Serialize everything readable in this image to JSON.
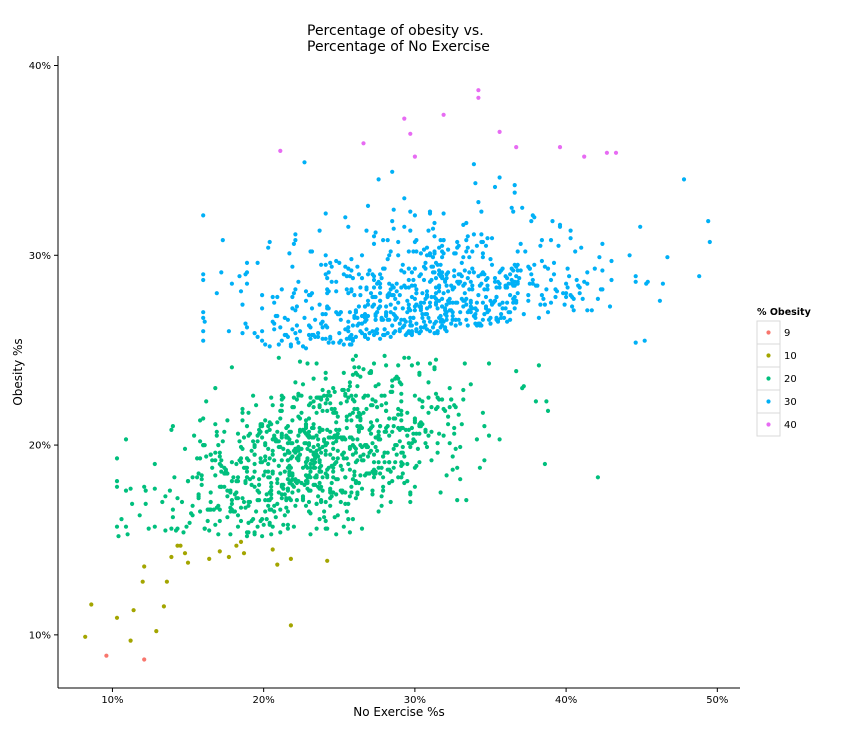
{
  "chart_data": {
    "type": "scatter",
    "title_lines": [
      "Percentage of obesity vs.",
      "Percentage of No Exercise"
    ],
    "xlabel": "No Exercise %s",
    "ylabel": "Obesity %s",
    "xlim": [
      0.064,
      0.515
    ],
    "ylim": [
      0.072,
      0.405
    ],
    "x_ticks": [
      {
        "value": 0.1,
        "label": "10%"
      },
      {
        "value": 0.2,
        "label": "20%"
      },
      {
        "value": 0.3,
        "label": "30%"
      },
      {
        "value": 0.4,
        "label": "40%"
      },
      {
        "value": 0.5,
        "label": "50%"
      }
    ],
    "y_ticks": [
      {
        "value": 0.1,
        "label": "10%"
      },
      {
        "value": 0.2,
        "label": "20%"
      },
      {
        "value": 0.3,
        "label": "30%"
      },
      {
        "value": 0.4,
        "label": "40%"
      }
    ],
    "grid": false,
    "legend": {
      "title": "% Obesity",
      "placement": "right",
      "entries": [
        {
          "label": "9",
          "color": "#F8766D"
        },
        {
          "label": "10",
          "color": "#A3A500"
        },
        {
          "label": "20",
          "color": "#00BF7D"
        },
        {
          "label": "30",
          "color": "#00B0F6"
        },
        {
          "label": "40",
          "color": "#E76BF3"
        }
      ]
    },
    "series": [
      {
        "name": "9",
        "color": "#F8766D",
        "points": [
          [
            0.096,
            0.089
          ],
          [
            0.121,
            0.087
          ]
        ]
      },
      {
        "name": "10",
        "color": "#A3A500",
        "points": [
          [
            0.082,
            0.099
          ],
          [
            0.086,
            0.116
          ],
          [
            0.103,
            0.109
          ],
          [
            0.112,
            0.097
          ],
          [
            0.114,
            0.113
          ],
          [
            0.12,
            0.128
          ],
          [
            0.121,
            0.136
          ],
          [
            0.129,
            0.102
          ],
          [
            0.134,
            0.115
          ],
          [
            0.136,
            0.128
          ],
          [
            0.139,
            0.141
          ],
          [
            0.143,
            0.147
          ],
          [
            0.145,
            0.147
          ],
          [
            0.148,
            0.143
          ],
          [
            0.15,
            0.138
          ],
          [
            0.164,
            0.14
          ],
          [
            0.171,
            0.144
          ],
          [
            0.177,
            0.141
          ],
          [
            0.182,
            0.147
          ],
          [
            0.185,
            0.149
          ],
          [
            0.187,
            0.143
          ],
          [
            0.206,
            0.145
          ],
          [
            0.209,
            0.137
          ],
          [
            0.218,
            0.14
          ],
          [
            0.242,
            0.139
          ],
          [
            0.218,
            0.105
          ]
        ]
      },
      {
        "name": "20",
        "color": "#00BF7D",
        "points": []
      },
      {
        "name": "30",
        "color": "#00B0F6",
        "points": []
      },
      {
        "name": "40",
        "color": "#E76BF3",
        "points": [
          [
            0.211,
            0.355
          ],
          [
            0.266,
            0.359
          ],
          [
            0.293,
            0.372
          ],
          [
            0.297,
            0.364
          ],
          [
            0.3,
            0.352
          ],
          [
            0.319,
            0.374
          ],
          [
            0.342,
            0.387
          ],
          [
            0.342,
            0.383
          ],
          [
            0.356,
            0.365
          ],
          [
            0.367,
            0.357
          ],
          [
            0.396,
            0.357
          ],
          [
            0.412,
            0.352
          ],
          [
            0.427,
            0.354
          ],
          [
            0.433,
            0.354
          ]
        ]
      }
    ]
  }
}
